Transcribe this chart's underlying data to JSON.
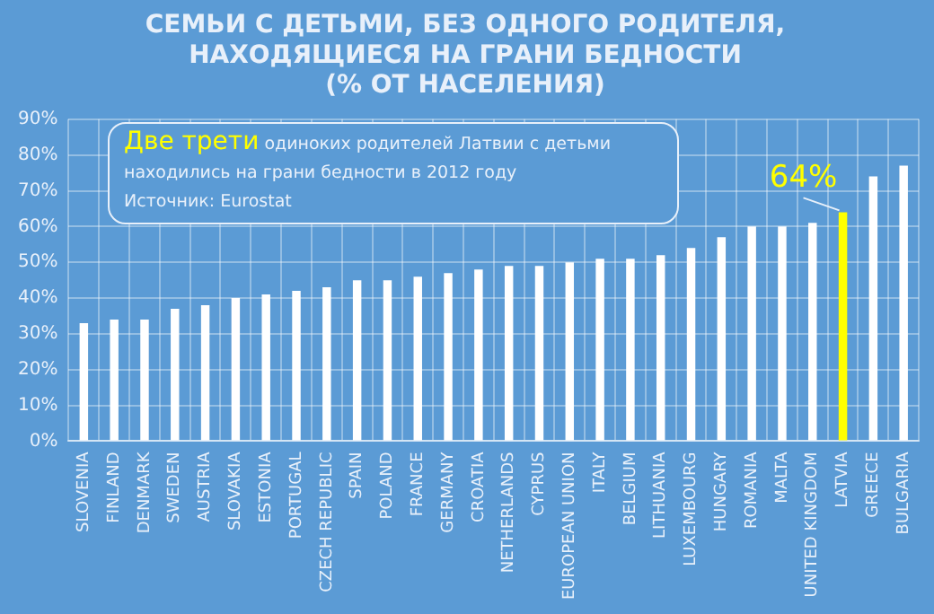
{
  "chart_data": {
    "type": "bar",
    "title": [
      "СЕМЬИ С ДЕТЬМИ, БЕЗ ОДНОГО РОДИТЕЛЯ,",
      "НАХОДЯЩИЕСЯ НА ГРАНИ БЕДНОСТИ",
      "(% ОТ НАСЕЛЕНИЯ)"
    ],
    "categories": [
      "SLOVENIA",
      "FINLAND",
      "DENMARK",
      "SWEDEN",
      "AUSTRIA",
      "SLOVAKIA",
      "ESTONIA",
      "PORTUGAL",
      "CZECH REPUBLIC",
      "SPAIN",
      "POLAND",
      "FRANCE",
      "GERMANY",
      "CROATIA",
      "NETHERLANDS",
      "CYPRUS",
      "EUROPEAN UNION",
      "ITALY",
      "BELGIUM",
      "LITHUANIA",
      "LUXEMBOURG",
      "HUNGARY",
      "ROMANIA",
      "MALTA",
      "UNITED KINGDOM",
      "LATVIA",
      "GREECE",
      "BULGARIA"
    ],
    "values": [
      33,
      34,
      34,
      37,
      38,
      40,
      41,
      42,
      43,
      45,
      45,
      46,
      47,
      48,
      49,
      49,
      50,
      51,
      51,
      52,
      54,
      57,
      60,
      60,
      61,
      64,
      74,
      77
    ],
    "colors": [
      "#ffffff",
      "#ffffff",
      "#ffffff",
      "#ffffff",
      "#ffffff",
      "#ffffff",
      "#ffffff",
      "#ffffff",
      "#ffffff",
      "#ffffff",
      "#ffffff",
      "#ffffff",
      "#ffffff",
      "#ffffff",
      "#ffffff",
      "#ffffff",
      "#ffffff",
      "#ffffff",
      "#ffffff",
      "#ffffff",
      "#ffffff",
      "#ffffff",
      "#ffffff",
      "#ffffff",
      "#ffffff",
      "#ffff00",
      "#ffffff",
      "#ffffff"
    ],
    "value_labels": [
      null,
      null,
      null,
      null,
      null,
      null,
      null,
      null,
      null,
      null,
      null,
      null,
      null,
      null,
      null,
      null,
      null,
      null,
      null,
      null,
      null,
      null,
      null,
      null,
      null,
      "64%",
      null,
      null
    ],
    "ylim": [
      0,
      90
    ],
    "yticks": [
      {
        "value": 0,
        "label": "0%"
      },
      {
        "value": 10,
        "label": "10%"
      },
      {
        "value": 20,
        "label": "20%"
      },
      {
        "value": 30,
        "label": "30%"
      },
      {
        "value": 40,
        "label": "40%"
      },
      {
        "value": 50,
        "label": "50%"
      },
      {
        "value": 60,
        "label": "60%"
      },
      {
        "value": 70,
        "label": "70%"
      },
      {
        "value": 80,
        "label": "80%"
      },
      {
        "value": 90,
        "label": "90%"
      }
    ],
    "grid": true,
    "annotations": [
      "Две трети",
      "одиноких родителей Латвии с детьми находились на грани бедности в 2012 году",
      "Источник: Eurostat"
    ]
  }
}
